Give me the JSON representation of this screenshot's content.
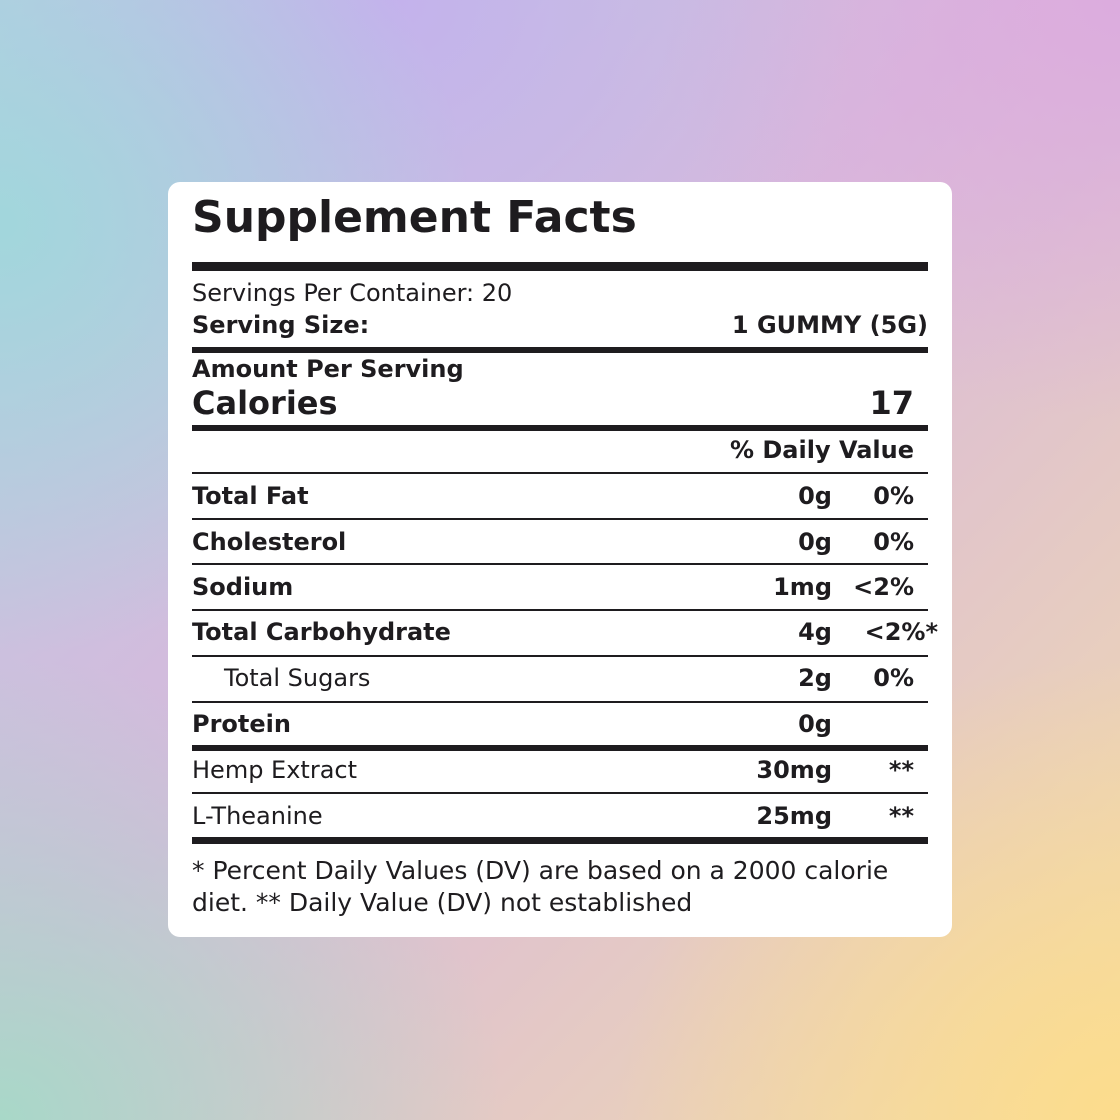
{
  "header": {
    "title": "Supplement Facts",
    "servings_per_container": "Servings Per Container: 20",
    "serving_size_label": "Serving Size:",
    "serving_size": "1 GUMMY (5G)",
    "amount_per_serving": "Amount Per Serving",
    "calories_label": "Calories",
    "calories": 17,
    "daily_value_header": "% Daily Value"
  },
  "table": {
    "rows": [
      [
        "Total Fat",
        "0g",
        "0%"
      ],
      [
        "Cholesterol",
        "0g",
        "0%"
      ],
      [
        "Sodium",
        "1mg",
        "<2%"
      ],
      [
        "Total Carbohydrate",
        "4g",
        "<2%*"
      ],
      [
        "Total Sugars",
        "2g",
        "0%"
      ],
      [
        "Protein",
        "0g"
      ],
      [
        "Hemp Extract",
        "30mg",
        "**"
      ],
      [
        "L-Theanine",
        "25mg",
        "**"
      ]
    ]
  },
  "footnote": "* Percent Daily Values (DV) are based on a 2000 calorie diet. ** Daily Value (DV) not established"
}
